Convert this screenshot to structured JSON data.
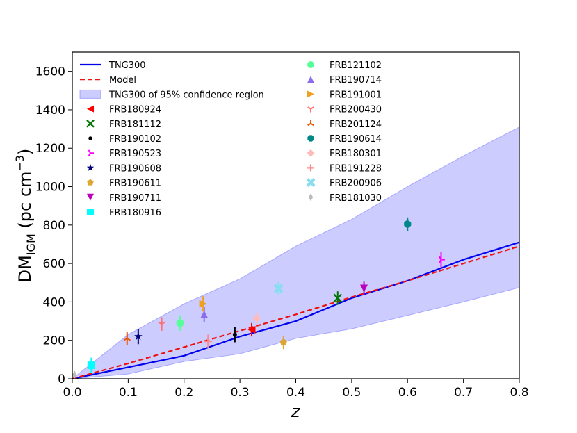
{
  "chart_data": {
    "type": "scatter",
    "xlabel": "z",
    "ylabel": {
      "base": "DM",
      "sub": "IGM",
      "units_prefix": " (pc cm",
      "units_sup": "−3",
      "units_suffix": ")"
    },
    "xlim": [
      0.0,
      0.8
    ],
    "ylim": [
      0,
      1700
    ],
    "xticks": [
      "0.0",
      "0.1",
      "0.2",
      "0.3",
      "0.4",
      "0.5",
      "0.6",
      "0.7",
      "0.8"
    ],
    "yticks": [
      "0",
      "200",
      "400",
      "600",
      "800",
      "1000",
      "1200",
      "1400",
      "1600"
    ],
    "grid": false,
    "legend_position": "top-left",
    "lines": [
      {
        "name": "TNG300",
        "color": "#0000ee",
        "style": "solid",
        "x": [
          0.0,
          0.1,
          0.2,
          0.3,
          0.4,
          0.5,
          0.6,
          0.7,
          0.8
        ],
        "y": [
          0,
          60,
          120,
          220,
          300,
          420,
          510,
          620,
          710
        ]
      },
      {
        "name": "Model",
        "color": "#ee1111",
        "style": "dashed",
        "x": [
          0.0,
          0.1,
          0.2,
          0.3,
          0.4,
          0.5,
          0.6,
          0.7,
          0.8
        ],
        "y": [
          0,
          80,
          165,
          250,
          335,
          425,
          510,
          600,
          690
        ]
      }
    ],
    "band": {
      "name": "TNG300 of 95% confidence region",
      "color": "#6c6cff",
      "x": [
        0.0,
        0.1,
        0.2,
        0.3,
        0.4,
        0.5,
        0.6,
        0.7,
        0.8
      ],
      "upper": [
        0,
        230,
        390,
        520,
        690,
        830,
        1000,
        1160,
        1310
      ],
      "lower": [
        0,
        25,
        90,
        130,
        210,
        260,
        330,
        400,
        475
      ]
    },
    "series": [
      {
        "name": "FRB180924",
        "marker": "triangle-left",
        "color": "#ff0000",
        "x": 0.321,
        "y": 255,
        "err": 35
      },
      {
        "name": "FRB181112",
        "marker": "x",
        "color": "#007700",
        "x": 0.475,
        "y": 420,
        "err": 35
      },
      {
        "name": "FRB190102",
        "marker": "point",
        "color": "#000000",
        "x": 0.291,
        "y": 230,
        "err": 40
      },
      {
        "name": "FRB190523",
        "marker": "tri-right",
        "color": "#ff00ff",
        "x": 0.66,
        "y": 620,
        "err": 40
      },
      {
        "name": "FRB190608",
        "marker": "star",
        "color": "#000077",
        "x": 0.118,
        "y": 220,
        "err": 40
      },
      {
        "name": "FRB190611",
        "marker": "pentagon",
        "color": "#dca632",
        "x": 0.378,
        "y": 190,
        "err": 35
      },
      {
        "name": "FRB190711",
        "marker": "triangle-down",
        "color": "#bb00bb",
        "x": 0.522,
        "y": 470,
        "err": 35
      },
      {
        "name": "FRB180916",
        "marker": "square",
        "color": "#00ffff",
        "x": 0.034,
        "y": 70,
        "err": 40
      },
      {
        "name": "FRB121102",
        "marker": "circle",
        "color": "#55ff99",
        "x": 0.193,
        "y": 290,
        "err": 40
      },
      {
        "name": "FRB190714",
        "marker": "triangle-up",
        "color": "#8a6cf0",
        "x": 0.236,
        "y": 335,
        "err": 40
      },
      {
        "name": "FRB191001",
        "marker": "triangle-right",
        "color": "#f0a020",
        "x": 0.234,
        "y": 390,
        "err": 40
      },
      {
        "name": "FRB200430",
        "marker": "tri-down",
        "color": "#ff7070",
        "x": 0.16,
        "y": 285,
        "err": 35
      },
      {
        "name": "FRB201124",
        "marker": "tri-up",
        "color": "#ee5500",
        "x": 0.098,
        "y": 210,
        "err": 35
      },
      {
        "name": "FRB190614",
        "marker": "octagon",
        "color": "#008888",
        "x": 0.6,
        "y": 805,
        "err": 35
      },
      {
        "name": "FRB180301",
        "marker": "diamond",
        "color": "#ffbbbb",
        "x": 0.33,
        "y": 315,
        "err": 35
      },
      {
        "name": "FRB191228",
        "marker": "plus",
        "color": "#ff8888",
        "x": 0.243,
        "y": 195,
        "err": 35
      },
      {
        "name": "FRB200906",
        "marker": "x-filled",
        "color": "#88ddee",
        "x": 0.369,
        "y": 470,
        "err": 35
      },
      {
        "name": "FRB181030",
        "marker": "thin-diamond",
        "color": "#bbbbbb",
        "x": 0.0039,
        "y": 20,
        "err": 20
      }
    ]
  }
}
